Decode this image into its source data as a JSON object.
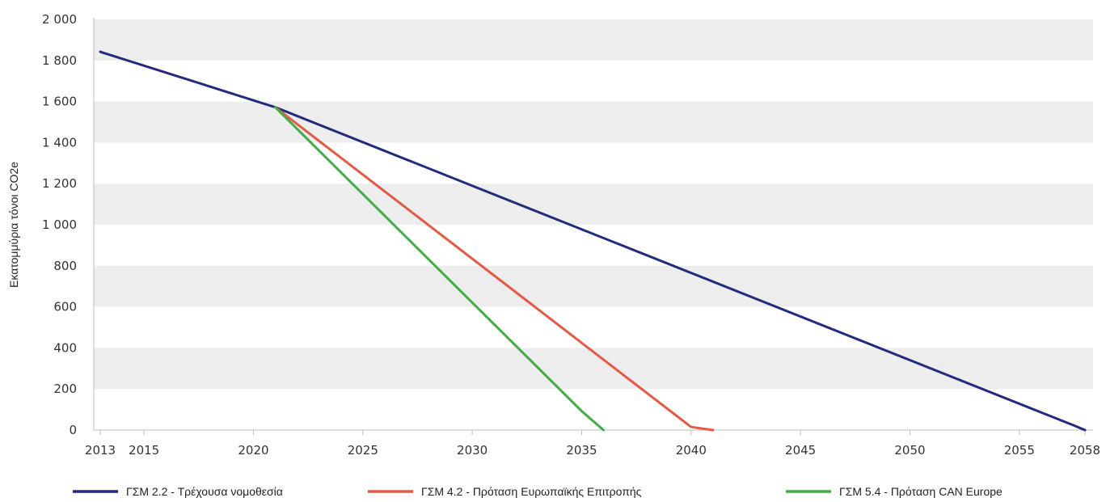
{
  "chart_data": {
    "type": "line",
    "ylabel": "Εκατομμύρια τόνοι CO2e",
    "ylim": [
      0,
      2000
    ],
    "xlim": [
      2013,
      2058
    ],
    "yticks": [
      {
        "value": 0,
        "label": "0"
      },
      {
        "value": 200,
        "label": "200"
      },
      {
        "value": 400,
        "label": "400"
      },
      {
        "value": 600,
        "label": "600"
      },
      {
        "value": 800,
        "label": "800"
      },
      {
        "value": 1000,
        "label": "1 000"
      },
      {
        "value": 1200,
        "label": "1 200"
      },
      {
        "value": 1400,
        "label": "1 400"
      },
      {
        "value": 1600,
        "label": "1 600"
      },
      {
        "value": 1800,
        "label": "1 800"
      },
      {
        "value": 2000,
        "label": "2 000"
      }
    ],
    "xticks": [
      {
        "value": 2013,
        "label": "2013"
      },
      {
        "value": 2015,
        "label": "2015"
      },
      {
        "value": 2020,
        "label": "2020"
      },
      {
        "value": 2025,
        "label": "2025"
      },
      {
        "value": 2030,
        "label": "2030"
      },
      {
        "value": 2035,
        "label": "2035"
      },
      {
        "value": 2040,
        "label": "2040"
      },
      {
        "value": 2045,
        "label": "2045"
      },
      {
        "value": 2050,
        "label": "2050"
      },
      {
        "value": 2055,
        "label": "2055"
      },
      {
        "value": 2058,
        "label": "2058"
      }
    ],
    "grid": "alternating horizontal bands",
    "legend_position": "bottom",
    "series": [
      {
        "name": "ΓΣΜ 2.2 - Τρέχουσα νομοθεσία",
        "color": "#242a7c",
        "points": [
          [
            2013,
            1842
          ],
          [
            2021,
            1572
          ],
          [
            2057.5,
            22
          ],
          [
            2058,
            0
          ]
        ]
      },
      {
        "name": "ΓΣΜ 4.2 - Πρόταση Ευρωπαϊκής Επιτροπής",
        "color": "#e35a46",
        "points": [
          [
            2021,
            1572
          ],
          [
            2040,
            15
          ],
          [
            2041,
            0
          ]
        ]
      },
      {
        "name": "ΓΣΜ 5.4 - Πρόταση CAN Europe",
        "color": "#42ad47",
        "points": [
          [
            2021,
            1572
          ],
          [
            2035,
            92
          ],
          [
            2036,
            0
          ]
        ]
      }
    ]
  }
}
